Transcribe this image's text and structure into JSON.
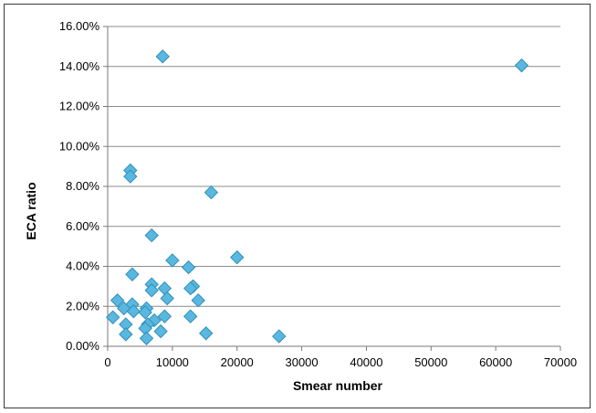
{
  "chart_data": {
    "type": "scatter",
    "xlabel": "Smear number",
    "ylabel": "ECA ratio",
    "xlim": [
      0,
      70000
    ],
    "ylim": [
      0,
      16
    ],
    "x_ticks": [
      0,
      10000,
      20000,
      30000,
      40000,
      50000,
      60000,
      70000
    ],
    "y_ticks": [
      0,
      2,
      4,
      6,
      8,
      10,
      12,
      14,
      16
    ],
    "x_tick_labels": [
      "0",
      "10000",
      "20000",
      "30000",
      "40000",
      "50000",
      "60000",
      "70000"
    ],
    "y_tick_labels": [
      "0.00%",
      "2.00%",
      "4.00%",
      "6.00%",
      "8.00%",
      "10.00%",
      "12.00%",
      "14.00%",
      "16.00%"
    ],
    "y_unit": "%",
    "grid": "horizontal",
    "legend": "none",
    "marker": "diamond",
    "marker_color": "#5ab8e0",
    "series": [
      {
        "points": [
          [
            8500,
            14.5
          ],
          [
            64000,
            14.05
          ],
          [
            3500,
            8.8
          ],
          [
            3500,
            8.5
          ],
          [
            16000,
            7.7
          ],
          [
            6800,
            5.55
          ],
          [
            20000,
            4.45
          ],
          [
            10000,
            4.3
          ],
          [
            12500,
            3.95
          ],
          [
            3800,
            3.6
          ],
          [
            6800,
            3.1
          ],
          [
            8800,
            2.9
          ],
          [
            6800,
            2.8
          ],
          [
            13200,
            3.0
          ],
          [
            12800,
            2.9
          ],
          [
            9200,
            2.4
          ],
          [
            14000,
            2.3
          ],
          [
            1500,
            2.3
          ],
          [
            3800,
            2.1
          ],
          [
            2500,
            1.9
          ],
          [
            6000,
            1.9
          ],
          [
            4000,
            1.75
          ],
          [
            5800,
            1.7
          ],
          [
            8800,
            1.5
          ],
          [
            12800,
            1.5
          ],
          [
            800,
            1.45
          ],
          [
            7200,
            1.3
          ],
          [
            2800,
            1.1
          ],
          [
            6200,
            1.1
          ],
          [
            5800,
            0.9
          ],
          [
            8200,
            0.75
          ],
          [
            15200,
            0.65
          ],
          [
            2800,
            0.6
          ],
          [
            6000,
            0.4
          ],
          [
            26500,
            0.5
          ]
        ]
      }
    ]
  }
}
